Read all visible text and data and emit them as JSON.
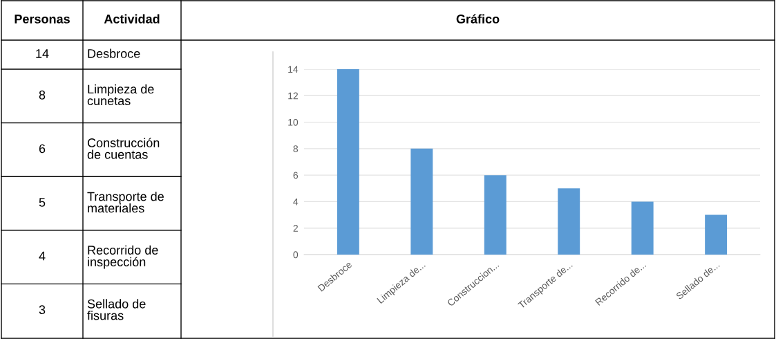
{
  "chart_data": {
    "type": "bar",
    "title": "Gráfico",
    "categories": [
      "Desbroce",
      "Limpieza de...",
      "Construccion...",
      "Transporte de...",
      "Recorrido de...",
      "Sellado de..."
    ],
    "values": [
      14,
      8,
      6,
      5,
      4,
      3
    ],
    "color": "#5b9bd5",
    "ylim": [
      0,
      14
    ],
    "yticks": [
      0,
      2,
      4,
      6,
      8,
      10,
      12,
      14
    ],
    "grid": "y",
    "annotations": [
      "Personas",
      "Actividad",
      "14",
      "Desbroce",
      "8",
      "Limpieza de\ncunetas",
      "6",
      "Construcción\nde cuentas",
      "5",
      "Transporte de\nmateriales",
      "4",
      "Recorrido de\ninspección",
      "3",
      "Sellado de\nfisuras"
    ]
  }
}
